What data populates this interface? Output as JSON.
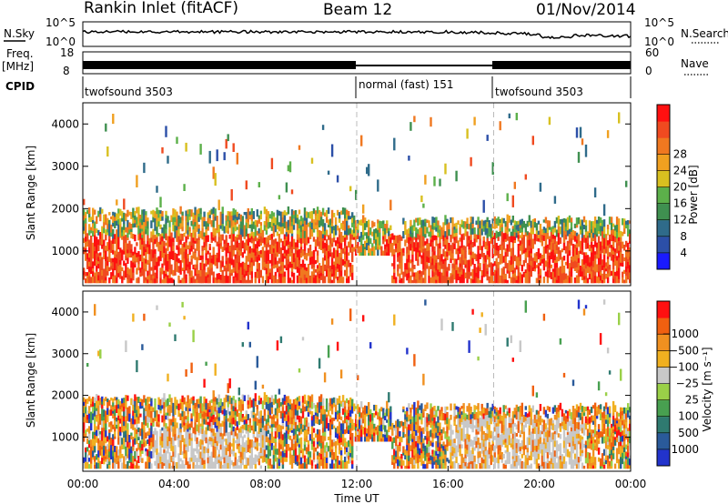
{
  "header": {
    "station": "Rankin Inlet (fitACF)",
    "beam": "Beam 12",
    "date": "01/Nov/2014"
  },
  "top_panels": {
    "nsky_label": "N.Sky",
    "nsearch_label": "N.Search",
    "nsky_ticks": [
      "10^5",
      "10^0"
    ],
    "freq_label_1": "Freq.",
    "freq_label_2": "[MHz]",
    "freq_ticks": [
      "18",
      "8"
    ],
    "nave_label": "Nave",
    "nave_ticks": [
      "60",
      "0"
    ],
    "cpid_label": "CPID",
    "cpid_segments": [
      {
        "name": "twofsound 3503",
        "start_hour": 0,
        "end_hour": 12
      },
      {
        "name": "normal (fast) 151",
        "start_hour": 12,
        "end_hour": 18
      },
      {
        "name": "twofsound 3503",
        "start_hour": 18,
        "end_hour": 24
      }
    ]
  },
  "chart_data": [
    {
      "type": "heatmap",
      "quantity": "Power",
      "ylabel": "Slant Range [km]",
      "xlabel": "Time UT",
      "ylim": [
        180,
        4500
      ],
      "yticks": [
        1000,
        2000,
        3000,
        4000
      ],
      "xlim": [
        0,
        24
      ],
      "xticklabels": [
        "00:00",
        "04:00",
        "08:00",
        "12:00",
        "16:00",
        "20:00",
        "00:00"
      ],
      "colorbar": {
        "label": "Power [dB]",
        "ticks": [
          4,
          8,
          12,
          16,
          20,
          24,
          28
        ],
        "colors": [
          "#1a1aff",
          "#2c4fa8",
          "#2f6b8a",
          "#3f9050",
          "#5cb04a",
          "#d8c020",
          "#f0a020",
          "#f07820",
          "#f04a20",
          "#ff1010"
        ]
      }
    },
    {
      "type": "heatmap",
      "quantity": "Velocity",
      "ylabel": "Slant Range [km]",
      "xlabel": "Time UT",
      "ylim": [
        180,
        4500
      ],
      "yticks": [
        1000,
        2000,
        3000,
        4000
      ],
      "xlim": [
        0,
        24
      ],
      "xticklabels": [
        "00:00",
        "04:00",
        "08:00",
        "12:00",
        "16:00",
        "20:00",
        "00:00"
      ],
      "colorbar": {
        "label": "Velocity [m s⁻¹]",
        "ticks": [
          "1000",
          "500",
          "100",
          "25",
          "−25",
          "−100",
          "−500",
          "−1000"
        ],
        "colors": [
          "#2233cc",
          "#2a5a9a",
          "#2f7a70",
          "#48a050",
          "#9ad048",
          "#c8c8c8",
          "#f0b020",
          "#f09020",
          "#f06010",
          "#ff1010"
        ]
      }
    }
  ]
}
